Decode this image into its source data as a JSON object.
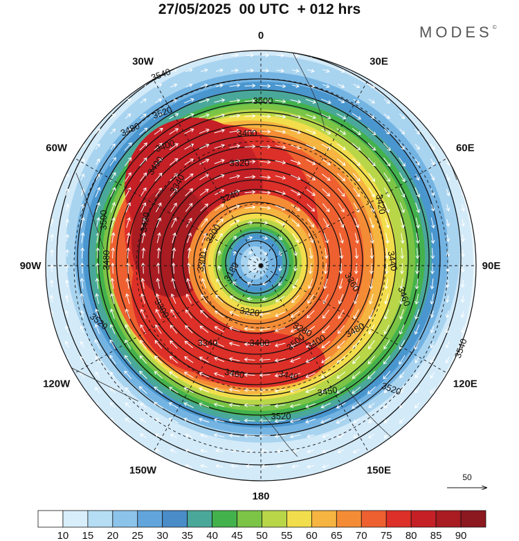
{
  "title": "27/05/2025  00 UTC  + 012 hrs",
  "brand": "MODES",
  "brand_mark": "©",
  "longitude_labels": [
    {
      "text": "0",
      "lon": 0
    },
    {
      "text": "30E",
      "lon": 30
    },
    {
      "text": "60E",
      "lon": 60
    },
    {
      "text": "90E",
      "lon": 90
    },
    {
      "text": "120E",
      "lon": 120
    },
    {
      "text": "150E",
      "lon": 150
    },
    {
      "text": "180",
      "lon": 180
    },
    {
      "text": "150W",
      "lon": 210
    },
    {
      "text": "120W",
      "lon": 240
    },
    {
      "text": "90W",
      "lon": 270
    },
    {
      "text": "60W",
      "lon": 300
    },
    {
      "text": "30W",
      "lon": 330
    }
  ],
  "height_contour_labels": [
    "3540",
    "3500",
    "3520",
    "3480",
    "3400",
    "3400",
    "3320",
    "3240",
    "3200",
    "3340",
    "3420",
    "3490",
    "3500",
    "3480",
    "3300",
    "3180",
    "3440",
    "3360",
    "3460",
    "3220",
    "3280",
    "3520",
    "3300",
    "3340",
    "3400",
    "3480",
    "3540",
    "3500",
    "3460",
    "3440",
    "3450",
    "3520",
    "3520",
    "3420",
    "3400"
  ],
  "vector_reference": {
    "label": "50"
  },
  "colorbar": {
    "labels": [
      "10",
      "15",
      "20",
      "25",
      "30",
      "35",
      "40",
      "45",
      "50",
      "55",
      "60",
      "65",
      "70",
      "75",
      "80",
      "85",
      "90"
    ],
    "colors": [
      "#ffffff",
      "#d8eefa",
      "#b5ddf4",
      "#8cc3ea",
      "#62a5dc",
      "#4a8cc8",
      "#4aa89a",
      "#44b24c",
      "#7cc446",
      "#b8d648",
      "#f2de4c",
      "#f6b440",
      "#f48c36",
      "#ee6030",
      "#dc3028",
      "#c42026",
      "#a81c22",
      "#8c1820"
    ]
  }
}
